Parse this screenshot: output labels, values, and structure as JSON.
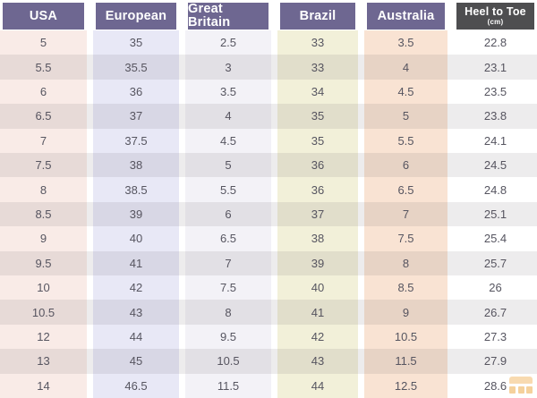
{
  "chart_data": {
    "type": "table",
    "columns": [
      {
        "label": "USA"
      },
      {
        "label": "European"
      },
      {
        "label": "Great Britain"
      },
      {
        "label": "Brazil"
      },
      {
        "label": "Australia"
      },
      {
        "label": "Heel to Toe",
        "sublabel": "(cm)"
      }
    ],
    "rows": [
      [
        "5",
        "35",
        "2.5",
        "33",
        "3.5",
        "22.8"
      ],
      [
        "5.5",
        "35.5",
        "3",
        "33",
        "4",
        "23.1"
      ],
      [
        "6",
        "36",
        "3.5",
        "34",
        "4.5",
        "23.5"
      ],
      [
        "6.5",
        "37",
        "4",
        "35",
        "5",
        "23.8"
      ],
      [
        "7",
        "37.5",
        "4.5",
        "35",
        "5.5",
        "24.1"
      ],
      [
        "7.5",
        "38",
        "5",
        "36",
        "6",
        "24.5"
      ],
      [
        "8",
        "38.5",
        "5.5",
        "36",
        "6.5",
        "24.8"
      ],
      [
        "8.5",
        "39",
        "6",
        "37",
        "7",
        "25.1"
      ],
      [
        "9",
        "40",
        "6.5",
        "38",
        "7.5",
        "25.4"
      ],
      [
        "9.5",
        "41",
        "7",
        "39",
        "8",
        "25.7"
      ],
      [
        "10",
        "42",
        "7.5",
        "40",
        "8.5",
        "26"
      ],
      [
        "10.5",
        "43",
        "8",
        "41",
        "9",
        "26.7"
      ],
      [
        "12",
        "44",
        "9.5",
        "42",
        "10.5",
        "27.3"
      ],
      [
        "13",
        "45",
        "10.5",
        "43",
        "11.5",
        "27.9"
      ],
      [
        "14",
        "46.5",
        "11.5",
        "44",
        "12.5",
        "28.6"
      ]
    ]
  },
  "colors": {
    "header_purple": "#6e6791",
    "header_dark": "#4e4e50",
    "col_tints": [
      "#f9ebe7",
      "#e8e8f6",
      "#f3f2f7",
      "#f2f0d9",
      "#f9e3d3",
      "#ffffff"
    ],
    "row_overlay": "rgba(93,85,90,0.11)",
    "text": "#565560",
    "watermark_orange": "#eda43b"
  },
  "watermark": {
    "icon": "grid-logo"
  }
}
